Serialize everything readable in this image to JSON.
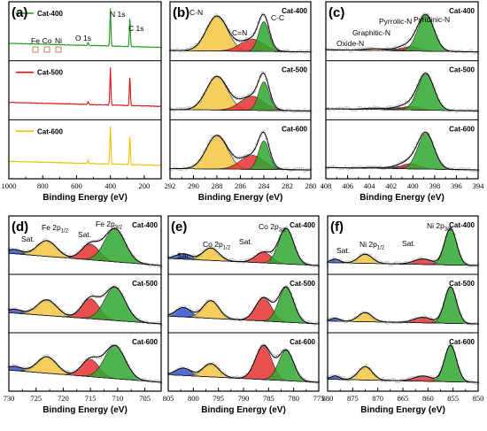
{
  "chart_data": [
    {
      "label": "(a)",
      "type": "line",
      "xlabel": "Binding Energy   (eV)",
      "xlim": [
        1000,
        100
      ],
      "xticks": [
        1000,
        800,
        600,
        400,
        200
      ],
      "stacks": [
        "Cat-400",
        "Cat-500",
        "Cat-600"
      ],
      "series": [
        {
          "name": "Cat-400",
          "color": "#1a9a1a"
        },
        {
          "name": "Cat-500",
          "color": "#dd1111"
        },
        {
          "name": "Cat-600",
          "color": "#f0c000"
        }
      ],
      "peaks": [
        {
          "name": "N 1s",
          "x": 400
        },
        {
          "name": "C 1s",
          "x": 285
        },
        {
          "name": "O 1s",
          "x": 532
        }
      ],
      "annotations": [
        "Fe",
        "Co",
        "Ni"
      ]
    },
    {
      "label": "(b)",
      "type": "area",
      "xlabel": "Binding Energy   (eV)",
      "xlim": [
        292,
        280
      ],
      "xticks": [
        292,
        290,
        288,
        286,
        284,
        282,
        280
      ],
      "stacks": [
        "Cat-400",
        "Cat-500",
        "Cat-600"
      ],
      "components": [
        {
          "name": "C-N",
          "center": 288.0,
          "color": "#f5c542"
        },
        {
          "name": "C=N",
          "center": 285.0,
          "color": "#e53030"
        },
        {
          "name": "C-C",
          "center": 284.0,
          "color": "#2fa82f"
        }
      ]
    },
    {
      "label": "(c)",
      "type": "area",
      "xlabel": "Binding Energy (eV)",
      "xlim": [
        408,
        394
      ],
      "xticks": [
        408,
        406,
        404,
        402,
        400,
        398,
        396,
        394
      ],
      "stacks": [
        "Cat-400",
        "Cat-500",
        "Cat-600"
      ],
      "components": [
        {
          "name": "Oxide-N",
          "center": 403.5,
          "color": "#f5c542"
        },
        {
          "name": "Graphitic-N",
          "center": 401.0,
          "color": "#3050d0"
        },
        {
          "name": "Pyrrolic-N",
          "center": 400.2,
          "color": "#e53030"
        },
        {
          "name": "Pyridinic-N",
          "center": 398.8,
          "color": "#2fa82f"
        }
      ]
    },
    {
      "label": "(d)",
      "type": "area",
      "xlabel": "Binding Energy   (eV)",
      "xlim": [
        730,
        702
      ],
      "xticks": [
        730,
        725,
        720,
        715,
        710,
        705
      ],
      "stacks": [
        "Cat-400",
        "Cat-500",
        "Cat-600"
      ],
      "components": [
        {
          "name": "Sat.",
          "center": 729.0,
          "color": "#3050d0"
        },
        {
          "name": "Fe 2p1/2",
          "center": 723.0,
          "color": "#f5c542"
        },
        {
          "name": "Sat.",
          "center": 715.0,
          "color": "#e53030"
        },
        {
          "name": "Fe 2p3/2",
          "center": 710.5,
          "color": "#2fa82f"
        }
      ]
    },
    {
      "label": "(e)",
      "type": "area",
      "xlabel": "Binding Energy   (eV)",
      "xlim": [
        805,
        775
      ],
      "xticks": [
        805,
        800,
        795,
        790,
        785,
        780,
        775
      ],
      "stacks": [
        "Cat-400",
        "Cat-500",
        "Cat-600"
      ],
      "components": [
        {
          "name": "Sat.",
          "center": 802.0,
          "color": "#3050d0"
        },
        {
          "name": "Co 2p1/2",
          "center": 796.5,
          "color": "#f5c542"
        },
        {
          "name": "Sat.",
          "center": 786.0,
          "color": "#e53030"
        },
        {
          "name": "Co 2p3/2",
          "center": 781.5,
          "color": "#2fa82f"
        }
      ]
    },
    {
      "label": "(f)",
      "type": "area",
      "xlabel": "Binding Energy   (eV)",
      "xlim": [
        880,
        850
      ],
      "xticks": [
        880,
        875,
        870,
        865,
        860,
        855,
        850
      ],
      "stacks": [
        "Cat-400",
        "Cat-500",
        "Cat-600"
      ],
      "components": [
        {
          "name": "Sat.",
          "center": 878.5,
          "color": "#3050d0"
        },
        {
          "name": "Ni 2p1/2",
          "center": 872.5,
          "color": "#f5c542"
        },
        {
          "name": "Sat.",
          "center": 861.0,
          "color": "#e53030"
        },
        {
          "name": "Ni 2p3/2",
          "center": 855.5,
          "color": "#2fa82f"
        }
      ]
    }
  ]
}
